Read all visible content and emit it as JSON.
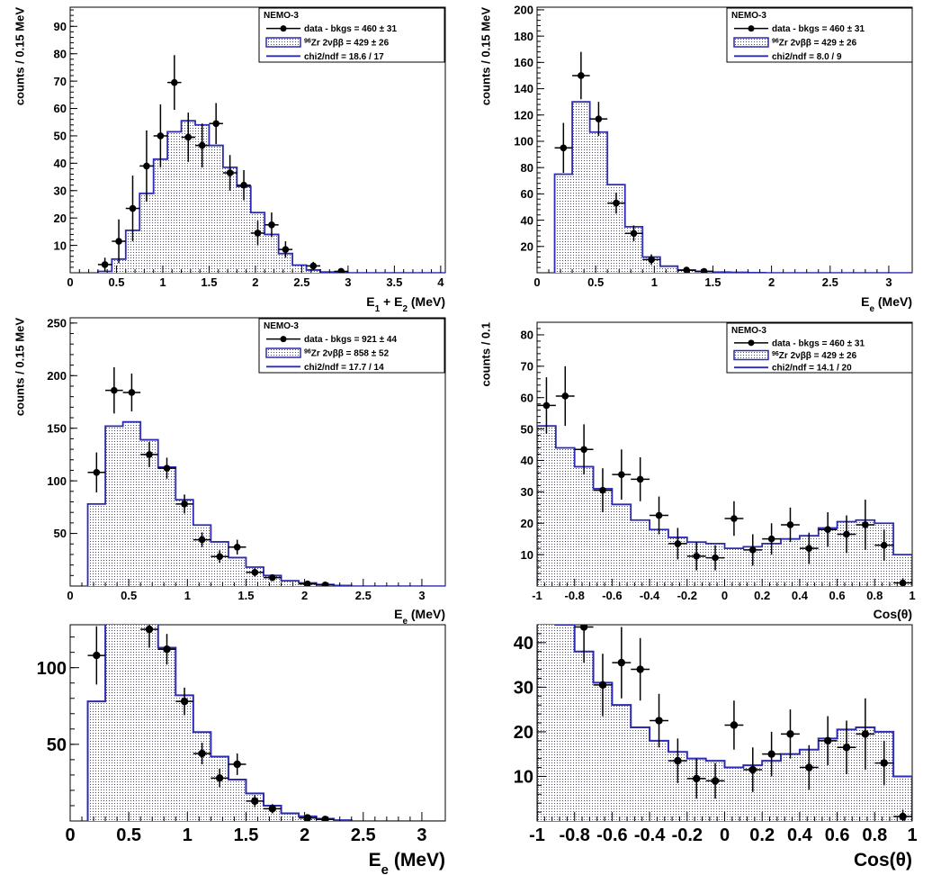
{
  "chart_data": [
    {
      "type": "bar",
      "xlabel": "E1 + E2 (MeV)",
      "ylabel": "counts / 0.15 MeV",
      "xlim": [
        0,
        4.05
      ],
      "ylim": [
        0,
        97
      ],
      "xticks": [
        0,
        0.5,
        1,
        1.5,
        2,
        2.5,
        3,
        3.5,
        4
      ],
      "xtick_labels": [
        "0",
        "0.5",
        "1",
        "1.5",
        "2",
        "2.5",
        "3",
        "3.5",
        "4"
      ],
      "yticks": [
        10,
        20,
        30,
        40,
        50,
        60,
        70,
        80,
        90
      ],
      "ytick_labels": [
        "10",
        "20",
        "30",
        "40",
        "50",
        "60",
        "70",
        "80",
        "90"
      ],
      "bin_edges": [
        0.3,
        0.45,
        0.6,
        0.75,
        0.9,
        1.05,
        1.2,
        1.35,
        1.5,
        1.65,
        1.8,
        1.95,
        2.1,
        2.25,
        2.4,
        2.55,
        2.7,
        2.85,
        3.0
      ],
      "mc_values": [
        0.5,
        5,
        15.5,
        29,
        41.5,
        51.5,
        55.5,
        54,
        46.5,
        38.5,
        31.5,
        22,
        14,
        7,
        2.8,
        1,
        0.3,
        0.1
      ],
      "data_x": [
        0.375,
        0.525,
        0.675,
        0.825,
        0.975,
        1.125,
        1.275,
        1.425,
        1.575,
        1.725,
        1.875,
        2.025,
        2.175,
        2.325,
        2.625,
        2.925
      ],
      "data_y": [
        3,
        11.5,
        23.5,
        39,
        50,
        69.5,
        49.5,
        46.5,
        54.5,
        36.5,
        32,
        14.5,
        17.5,
        8.5,
        2.5,
        0.5
      ],
      "data_err": [
        2.5,
        8,
        12,
        13,
        11.5,
        10,
        9,
        8,
        7.5,
        6.5,
        5.5,
        4.5,
        4.5,
        3,
        1.5,
        0.7
      ],
      "legend": {
        "header": "NEMO-3",
        "entries": [
          {
            "kind": "data",
            "label": "data - bkgs = 460 ± 31"
          },
          {
            "kind": "mc",
            "label_sup": "96",
            "label": "Zr 2νββ = 429 ± 26"
          },
          {
            "kind": "line",
            "label": "chi2/ndf = 18.6 / 17"
          }
        ]
      }
    },
    {
      "type": "bar",
      "xlabel": "Ee (MeV)",
      "ylabel": "counts / 0.15 MeV",
      "xlim": [
        0,
        3.2
      ],
      "ylim": [
        0,
        202
      ],
      "xticks": [
        0,
        0.5,
        1,
        1.5,
        2,
        2.5,
        3
      ],
      "xtick_labels": [
        "0",
        "0.5",
        "1",
        "1.5",
        "2",
        "2.5",
        "3"
      ],
      "yticks": [
        20,
        40,
        60,
        80,
        100,
        120,
        140,
        160,
        180,
        200
      ],
      "ytick_labels": [
        "20",
        "40",
        "60",
        "80",
        "100",
        "120",
        "140",
        "160",
        "180",
        "200"
      ],
      "bin_edges": [
        0.15,
        0.3,
        0.45,
        0.6,
        0.75,
        0.9,
        1.05,
        1.2,
        1.35,
        1.5,
        1.65,
        1.8,
        1.95
      ],
      "mc_values": [
        75,
        130,
        107,
        67,
        35,
        12,
        5,
        2,
        1,
        0.5,
        0.3,
        0.1
      ],
      "data_x": [
        0.225,
        0.375,
        0.525,
        0.675,
        0.825,
        0.975,
        1.275,
        1.425
      ],
      "data_y": [
        95,
        150,
        117,
        53,
        30,
        10,
        2,
        1
      ],
      "data_err": [
        19,
        18,
        13,
        8,
        6,
        4,
        1.5,
        1
      ],
      "legend": {
        "header": "NEMO-3",
        "entries": [
          {
            "kind": "data",
            "label": "data - bkgs = 460 ± 31"
          },
          {
            "kind": "mc",
            "label_sup": "96",
            "label": "Zr 2νββ = 429 ± 26"
          },
          {
            "kind": "line",
            "label": "chi2/ndf = 8.0 / 9"
          }
        ]
      }
    },
    {
      "type": "bar",
      "xlabel": "Ee (MeV)",
      "ylabel": "counts / 0.15 MeV",
      "xlim": [
        0,
        3.2
      ],
      "ylim": [
        0,
        255
      ],
      "xticks": [
        0,
        0.5,
        1,
        1.5,
        2,
        2.5,
        3
      ],
      "xtick_labels": [
        "0",
        "0.5",
        "1",
        "1.5",
        "2",
        "2.5",
        "3"
      ],
      "yticks": [
        50,
        100,
        150,
        200,
        250
      ],
      "ytick_labels": [
        "50",
        "100",
        "150",
        "200",
        "250"
      ],
      "bin_edges": [
        0.15,
        0.3,
        0.45,
        0.6,
        0.75,
        0.9,
        1.05,
        1.2,
        1.35,
        1.5,
        1.65,
        1.8,
        1.95,
        2.1,
        2.25,
        2.4
      ],
      "mc_values": [
        78,
        152,
        156,
        139,
        113,
        82,
        58,
        42,
        27,
        18,
        10,
        5,
        3,
        1.5,
        0.5
      ],
      "data_x": [
        0.225,
        0.375,
        0.525,
        0.675,
        0.825,
        0.975,
        1.125,
        1.275,
        1.425,
        1.575,
        1.725,
        2.025,
        2.175
      ],
      "data_y": [
        108,
        186,
        184,
        125,
        112,
        78,
        44,
        28,
        37,
        13,
        8,
        2,
        1
      ],
      "data_err": [
        19,
        22,
        18,
        12,
        10,
        9,
        7,
        6,
        7,
        4,
        3,
        2,
        1
      ],
      "legend": {
        "header": "NEMO-3",
        "entries": [
          {
            "kind": "data",
            "label": "data - bkgs = 921 ± 44"
          },
          {
            "kind": "mc",
            "label_sup": "96",
            "label": "Zr 2νββ = 858 ± 52"
          },
          {
            "kind": "line",
            "label": "chi2/ndf = 17.7 / 14"
          }
        ]
      }
    },
    {
      "type": "bar",
      "xlabel": "Cos(θ)",
      "ylabel": "counts / 0.1",
      "xlim": [
        -1,
        1
      ],
      "ylim": [
        0,
        84
      ],
      "xticks": [
        -1,
        -0.8,
        -0.6,
        -0.4,
        -0.2,
        0,
        0.2,
        0.4,
        0.6,
        0.8,
        1
      ],
      "xtick_labels": [
        "-1",
        "-0.8",
        "-0.6",
        "-0.4",
        "-0.2",
        "0",
        "0.2",
        "0.4",
        "0.6",
        "0.8",
        "1"
      ],
      "yticks": [
        10,
        20,
        30,
        40,
        50,
        60,
        70,
        80
      ],
      "ytick_labels": [
        "10",
        "20",
        "30",
        "40",
        "50",
        "60",
        "70",
        "80"
      ],
      "bin_edges": [
        -1,
        -0.9,
        -0.8,
        -0.7,
        -0.6,
        -0.5,
        -0.4,
        -0.3,
        -0.2,
        -0.1,
        0,
        0.1,
        0.2,
        0.3,
        0.4,
        0.5,
        0.6,
        0.7,
        0.8,
        0.9,
        1
      ],
      "mc_values": [
        51,
        44,
        38,
        31,
        26,
        21,
        18,
        15.5,
        14,
        13.5,
        12,
        12.5,
        13.5,
        15,
        16,
        18.5,
        20.5,
        21,
        20,
        10
      ],
      "data_x": [
        -0.95,
        -0.85,
        -0.75,
        -0.65,
        -0.55,
        -0.45,
        -0.35,
        -0.25,
        -0.15,
        -0.05,
        0.05,
        0.15,
        0.25,
        0.35,
        0.45,
        0.55,
        0.65,
        0.75,
        0.85,
        0.95
      ],
      "data_y": [
        57.5,
        60.5,
        43.5,
        30.5,
        35.5,
        34,
        22.5,
        13.5,
        9.5,
        9,
        21.5,
        11.5,
        15,
        19.5,
        12,
        18,
        16.5,
        19.5,
        13,
        1
      ],
      "data_err": [
        9,
        9.5,
        8,
        7,
        8,
        7,
        6,
        5,
        4.5,
        4,
        5.5,
        5,
        5,
        5.5,
        5,
        5.5,
        6,
        8,
        5,
        1.5
      ],
      "legend": {
        "header": "NEMO-3",
        "entries": [
          {
            "kind": "data",
            "label": "data - bkgs = 460 ± 31"
          },
          {
            "kind": "mc",
            "label_sup": "96",
            "label": "Zr 2νββ = 429 ± 26"
          },
          {
            "kind": "line",
            "label": "chi2/ndf = 14.1 / 20"
          }
        ]
      }
    },
    {
      "type": "bar",
      "xlabel": "Ee (MeV)",
      "ylabel": "",
      "xlim": [
        0,
        3.2
      ],
      "ylim": [
        0,
        128
      ],
      "xticks": [
        0,
        0.5,
        1,
        1.5,
        2,
        2.5,
        3
      ],
      "xtick_labels": [
        "0",
        "0.5",
        "1",
        "1.5",
        "2",
        "2.5",
        "3"
      ],
      "yticks": [
        50,
        100
      ],
      "ytick_labels": [
        "50",
        "100"
      ],
      "bin_edges": [
        0.15,
        0.3,
        0.45,
        0.6,
        0.75,
        0.9,
        1.05,
        1.2,
        1.35,
        1.5,
        1.65,
        1.8,
        1.95,
        2.1,
        2.25,
        2.4
      ],
      "mc_values": [
        78,
        152,
        156,
        139,
        113,
        82,
        58,
        42,
        27,
        18,
        10,
        5,
        3,
        1.5,
        0.5
      ],
      "data_x": [
        0.225,
        0.375,
        0.525,
        0.675,
        0.825,
        0.975,
        1.125,
        1.275,
        1.425,
        1.575,
        1.725,
        2.025,
        2.175
      ],
      "data_y": [
        108,
        186,
        184,
        125,
        112,
        78,
        44,
        28,
        37,
        13,
        8,
        2,
        1
      ],
      "data_err": [
        19,
        22,
        18,
        12,
        10,
        9,
        7,
        6,
        7,
        4,
        3,
        2,
        1
      ]
    },
    {
      "type": "bar",
      "xlabel": "Cos(θ)",
      "ylabel": "",
      "xlim": [
        -1,
        1
      ],
      "ylim": [
        0,
        44
      ],
      "xticks": [
        -1,
        -0.8,
        -0.6,
        -0.4,
        -0.2,
        0,
        0.2,
        0.4,
        0.6,
        0.8,
        1
      ],
      "xtick_labels": [
        "-1",
        "-0.8",
        "-0.6",
        "-0.4",
        "-0.2",
        "0",
        "0.2",
        "0.4",
        "0.6",
        "0.8",
        "1"
      ],
      "yticks": [
        10,
        20,
        30,
        40
      ],
      "ytick_labels": [
        "10",
        "20",
        "30",
        "40"
      ],
      "bin_edges": [
        -1,
        -0.9,
        -0.8,
        -0.7,
        -0.6,
        -0.5,
        -0.4,
        -0.3,
        -0.2,
        -0.1,
        0,
        0.1,
        0.2,
        0.3,
        0.4,
        0.5,
        0.6,
        0.7,
        0.8,
        0.9,
        1
      ],
      "mc_values": [
        51,
        44,
        38,
        31,
        26,
        21,
        18,
        15.5,
        14,
        13.5,
        12,
        12.5,
        13.5,
        15,
        16,
        18.5,
        20.5,
        21,
        20,
        10
      ],
      "data_x": [
        -0.95,
        -0.85,
        -0.75,
        -0.65,
        -0.55,
        -0.45,
        -0.35,
        -0.25,
        -0.15,
        -0.05,
        0.05,
        0.15,
        0.25,
        0.35,
        0.45,
        0.55,
        0.65,
        0.75,
        0.85,
        0.95
      ],
      "data_y": [
        57.5,
        60.5,
        43.5,
        30.5,
        35.5,
        34,
        22.5,
        13.5,
        9.5,
        9,
        21.5,
        11.5,
        15,
        19.5,
        12,
        18,
        16.5,
        19.5,
        13,
        1
      ],
      "data_err": [
        9,
        9.5,
        8,
        7,
        8,
        7,
        6,
        5,
        4.5,
        4,
        5.5,
        5,
        5,
        5.5,
        5,
        5.5,
        6,
        8,
        5,
        1.5
      ]
    }
  ],
  "colors": {
    "mc_line": "#2b2bb5",
    "mc_fill_dot": "#4a4a70",
    "data": "#000000"
  }
}
